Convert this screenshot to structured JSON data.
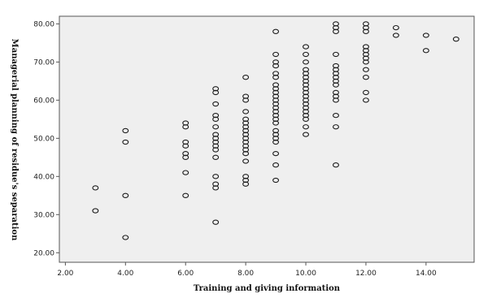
{
  "chart_data": {
    "type": "scatter",
    "title": "",
    "xlabel": "Training and giving information",
    "ylabel": "Managerial planning of residue's separation",
    "xlim": [
      1.8,
      15.6
    ],
    "ylim": [
      17.5,
      82
    ],
    "xticks": [
      "2.00",
      "4.00",
      "6.00",
      "8.00",
      "10.00",
      "12.00",
      "14.00"
    ],
    "yticks": [
      "20.00",
      "30.00",
      "40.00",
      "50.00",
      "60.00",
      "70.00",
      "80.00"
    ],
    "xtick_values": [
      2,
      4,
      6,
      8,
      10,
      12,
      14
    ],
    "ytick_values": [
      20,
      30,
      40,
      50,
      60,
      70,
      80
    ],
    "grid": false,
    "marker": "open-circle",
    "colors": {
      "plot_background": "#efefef",
      "marker": "#1a1a1a",
      "axis": "#555555"
    },
    "points": [
      [
        3,
        37
      ],
      [
        3,
        31
      ],
      [
        4,
        52
      ],
      [
        4,
        49
      ],
      [
        4,
        35
      ],
      [
        4,
        24
      ],
      [
        6,
        54
      ],
      [
        6,
        53
      ],
      [
        6,
        49
      ],
      [
        6,
        48
      ],
      [
        6,
        46
      ],
      [
        6,
        45
      ],
      [
        6,
        41
      ],
      [
        6,
        35
      ],
      [
        7,
        63
      ],
      [
        7,
        62
      ],
      [
        7,
        59
      ],
      [
        7,
        56
      ],
      [
        7,
        55
      ],
      [
        7,
        53
      ],
      [
        7,
        51
      ],
      [
        7,
        50
      ],
      [
        7,
        49
      ],
      [
        7,
        48
      ],
      [
        7,
        47
      ],
      [
        7,
        45
      ],
      [
        7,
        40
      ],
      [
        7,
        38
      ],
      [
        7,
        37
      ],
      [
        7,
        28
      ],
      [
        8,
        66
      ],
      [
        8,
        61
      ],
      [
        8,
        60
      ],
      [
        8,
        57
      ],
      [
        8,
        55
      ],
      [
        8,
        54
      ],
      [
        8,
        53
      ],
      [
        8,
        52
      ],
      [
        8,
        51
      ],
      [
        8,
        50
      ],
      [
        8,
        49
      ],
      [
        8,
        48
      ],
      [
        8,
        47
      ],
      [
        8,
        46
      ],
      [
        8,
        44
      ],
      [
        8,
        40
      ],
      [
        8,
        39
      ],
      [
        8,
        38
      ],
      [
        9,
        78
      ],
      [
        9,
        72
      ],
      [
        9,
        70
      ],
      [
        9,
        69
      ],
      [
        9,
        67
      ],
      [
        9,
        66
      ],
      [
        9,
        64
      ],
      [
        9,
        63
      ],
      [
        9,
        62
      ],
      [
        9,
        61
      ],
      [
        9,
        60
      ],
      [
        9,
        59
      ],
      [
        9,
        58
      ],
      [
        9,
        57
      ],
      [
        9,
        56
      ],
      [
        9,
        55
      ],
      [
        9,
        54
      ],
      [
        9,
        52
      ],
      [
        9,
        51
      ],
      [
        9,
        50
      ],
      [
        9,
        49
      ],
      [
        9,
        46
      ],
      [
        9,
        43
      ],
      [
        9,
        39
      ],
      [
        10,
        74
      ],
      [
        10,
        72
      ],
      [
        10,
        70
      ],
      [
        10,
        68
      ],
      [
        10,
        67
      ],
      [
        10,
        66
      ],
      [
        10,
        65
      ],
      [
        10,
        64
      ],
      [
        10,
        63
      ],
      [
        10,
        62
      ],
      [
        10,
        61
      ],
      [
        10,
        60
      ],
      [
        10,
        59
      ],
      [
        10,
        58
      ],
      [
        10,
        57
      ],
      [
        10,
        56
      ],
      [
        10,
        55
      ],
      [
        10,
        53
      ],
      [
        10,
        51
      ],
      [
        11,
        80
      ],
      [
        11,
        79
      ],
      [
        11,
        78
      ],
      [
        11,
        72
      ],
      [
        11,
        69
      ],
      [
        11,
        68
      ],
      [
        11,
        67
      ],
      [
        11,
        66
      ],
      [
        11,
        65
      ],
      [
        11,
        64
      ],
      [
        11,
        62
      ],
      [
        11,
        61
      ],
      [
        11,
        60
      ],
      [
        11,
        56
      ],
      [
        11,
        53
      ],
      [
        11,
        43
      ],
      [
        12,
        80
      ],
      [
        12,
        79
      ],
      [
        12,
        78
      ],
      [
        12,
        74
      ],
      [
        12,
        73
      ],
      [
        12,
        72
      ],
      [
        12,
        71
      ],
      [
        12,
        70
      ],
      [
        12,
        68
      ],
      [
        12,
        66
      ],
      [
        12,
        62
      ],
      [
        12,
        60
      ],
      [
        13,
        79
      ],
      [
        13,
        77
      ],
      [
        14,
        77
      ],
      [
        14,
        73
      ],
      [
        15,
        76
      ]
    ]
  }
}
